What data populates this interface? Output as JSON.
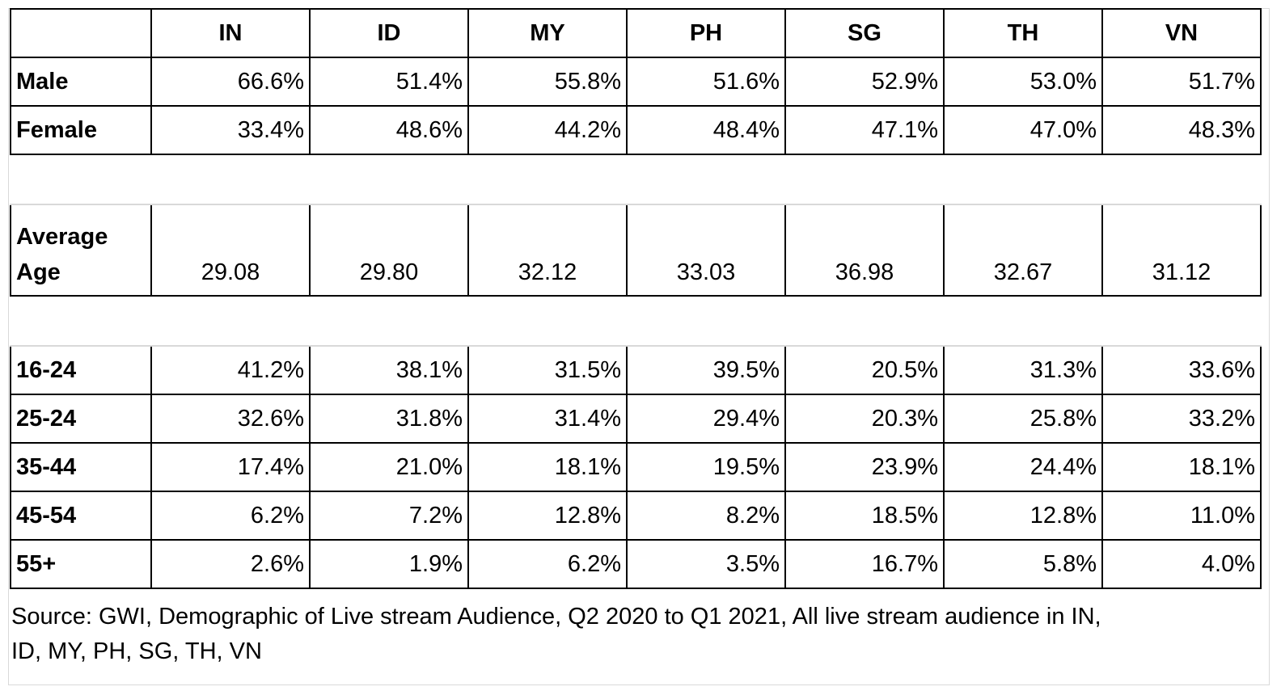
{
  "chart_data": {
    "type": "table",
    "columns": [
      "IN",
      "ID",
      "MY",
      "PH",
      "SG",
      "TH",
      "VN"
    ],
    "gender_rows": [
      {
        "label": "Male",
        "values": [
          "66.6%",
          "51.4%",
          "55.8%",
          "51.6%",
          "52.9%",
          "53.0%",
          "51.7%"
        ]
      },
      {
        "label": "Female",
        "values": [
          "33.4%",
          "48.6%",
          "44.2%",
          "48.4%",
          "47.1%",
          "47.0%",
          "48.3%"
        ]
      }
    ],
    "average_age": {
      "label_line1": "Average",
      "label_line2": "Age",
      "values": [
        "29.08",
        "29.80",
        "32.12",
        "33.03",
        "36.98",
        "32.67",
        "31.12"
      ]
    },
    "age_rows": [
      {
        "label": "16-24",
        "values": [
          "41.2%",
          "38.1%",
          "31.5%",
          "39.5%",
          "20.5%",
          "31.3%",
          "33.6%"
        ]
      },
      {
        "label": "25-24",
        "values": [
          "32.6%",
          "31.8%",
          "31.4%",
          "29.4%",
          "20.3%",
          "25.8%",
          "33.2%"
        ]
      },
      {
        "label": "35-44",
        "values": [
          "17.4%",
          "21.0%",
          "18.1%",
          "19.5%",
          "23.9%",
          "24.4%",
          "18.1%"
        ]
      },
      {
        "label": "45-54",
        "values": [
          "6.2%",
          "7.2%",
          "12.8%",
          "8.2%",
          "18.5%",
          "12.8%",
          "11.0%"
        ]
      },
      {
        "label": "55+",
        "values": [
          "2.6%",
          "1.9%",
          "6.2%",
          "3.5%",
          "16.7%",
          "5.8%",
          "4.0%"
        ]
      }
    ],
    "source_line1": "Source: GWI, Demographic of Live stream Audience, Q2 2020 to Q1 2021, All live stream audience in IN,",
    "source_line2": "ID, MY, PH, SG, TH, VN"
  }
}
